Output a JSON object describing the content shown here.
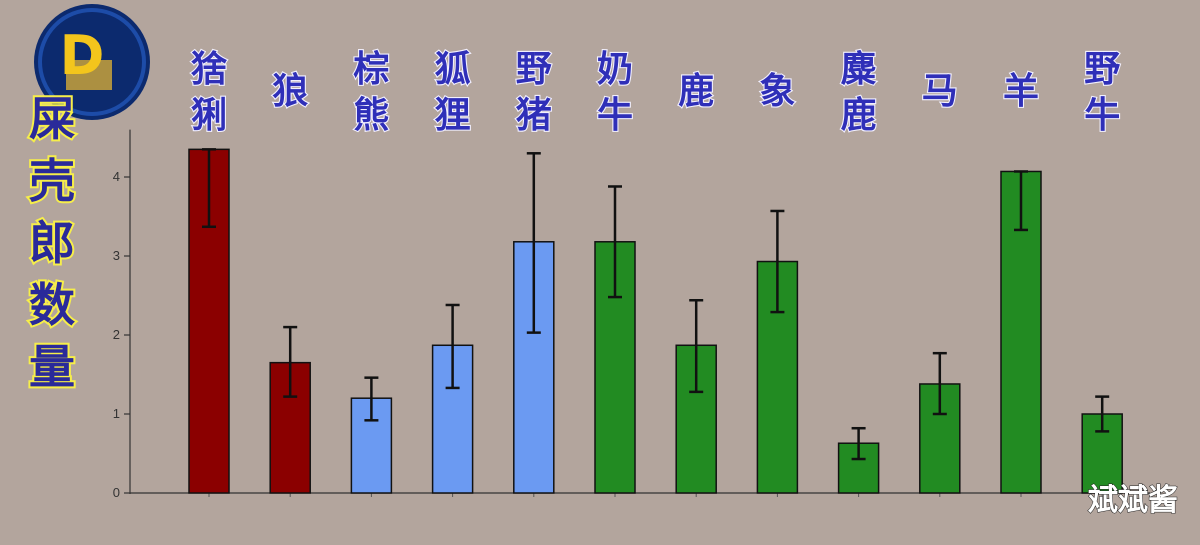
{
  "chart_data": {
    "type": "bar",
    "categories": [
      "猞猁",
      "狼",
      "棕熊",
      "狐狸",
      "野猪",
      "奶牛",
      "鹿",
      "象",
      "麋鹿",
      "马",
      "羊",
      "野牛"
    ],
    "values": [
      4.35,
      1.65,
      1.2,
      1.87,
      3.18,
      3.18,
      1.87,
      2.93,
      0.63,
      1.38,
      4.07,
      1.0
    ],
    "error_low": [
      3.37,
      1.22,
      0.92,
      1.33,
      2.03,
      2.48,
      1.28,
      2.29,
      0.43,
      1.0,
      3.33,
      0.78
    ],
    "error_high": [
      4.35,
      2.1,
      1.46,
      2.38,
      4.3,
      3.88,
      2.44,
      3.57,
      0.82,
      1.77,
      4.07,
      1.22
    ],
    "bar_colors": [
      "#8b0000",
      "#8b0000",
      "#6b9af2",
      "#6b9af2",
      "#6b9af2",
      "#228b22",
      "#228b22",
      "#228b22",
      "#228b22",
      "#228b22",
      "#228b22",
      "#228b22"
    ],
    "ylabel": "屎壳郎数量",
    "xlabel": "",
    "title": "",
    "ylim": [
      0,
      4.6
    ],
    "yticks": [
      0,
      1,
      2,
      3,
      4
    ],
    "grid": false
  },
  "watermark": {
    "text": "斌斌酱"
  },
  "logo": {
    "letter": "D",
    "colors": [
      "#0c2a6e",
      "#f3c51c"
    ]
  }
}
